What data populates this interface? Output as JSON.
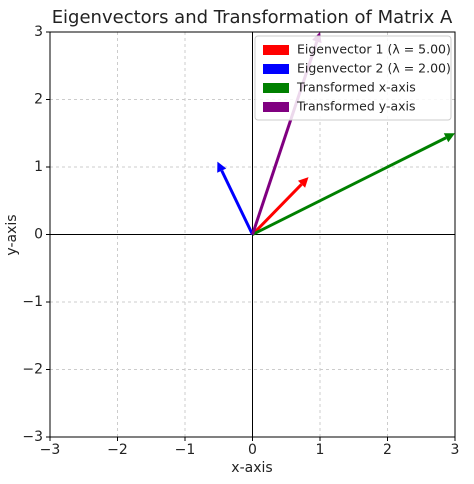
{
  "chart_data": {
    "type": "quiver",
    "title": "Eigenvectors and Transformation of Matrix A",
    "xlabel": "x-axis",
    "ylabel": "y-axis",
    "xlim": [
      -3,
      3
    ],
    "ylim": [
      -3,
      3
    ],
    "xticks": [
      {
        "value": -3,
        "label": "−3"
      },
      {
        "value": -2,
        "label": "−2"
      },
      {
        "value": -1,
        "label": "−1"
      },
      0,
      1,
      2,
      3
    ],
    "yticks": [
      {
        "value": -3,
        "label": "−3"
      },
      {
        "value": -2,
        "label": "−2"
      },
      {
        "value": -1,
        "label": "−1"
      },
      0,
      1,
      2,
      3
    ],
    "grid": true,
    "legend": "upper right",
    "series": [
      {
        "name": "Eigenvector 1 (λ = 5.00)",
        "color": "#ff0000",
        "u": 0.83,
        "v": 0.85
      },
      {
        "name": "Eigenvector 2 (λ = 2.00)",
        "color": "#0000ff",
        "u": -0.52,
        "v": 1.08
      },
      {
        "name": "Transformed x-axis",
        "color": "#008000",
        "u": 3,
        "v": 1.5
      },
      {
        "name": "Transformed y-axis",
        "color": "#800080",
        "u": 1,
        "v": 3
      }
    ]
  }
}
